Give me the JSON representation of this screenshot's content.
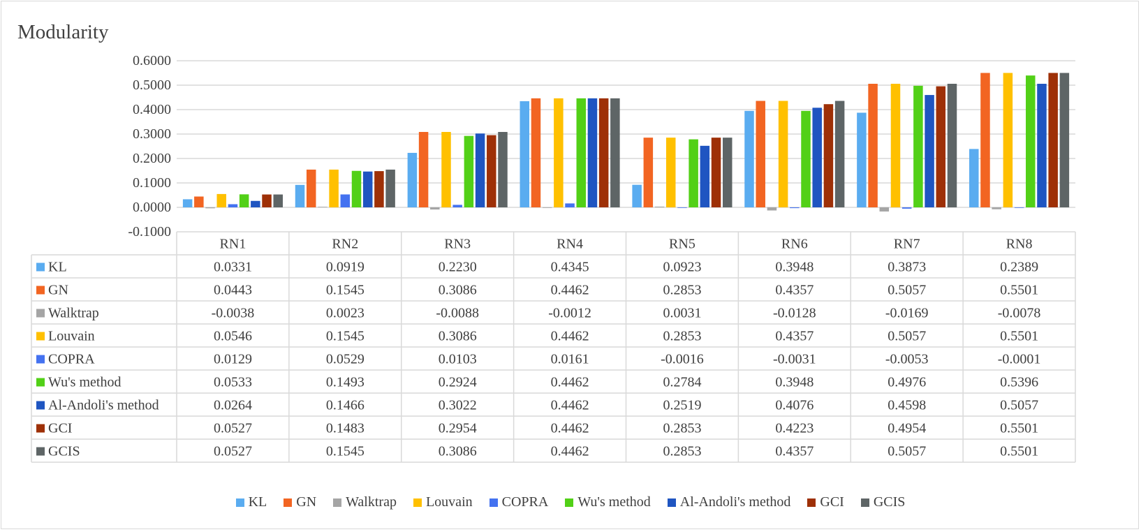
{
  "chart_data": {
    "type": "bar",
    "title": "Modularity",
    "xlabel": "",
    "ylabel": "",
    "ylim": [
      -0.1,
      0.6
    ],
    "yticks": [
      0.6,
      0.5,
      0.4,
      0.3,
      0.2,
      0.1,
      0.0,
      -0.1
    ],
    "ytick_labels": [
      "0.6000",
      "0.5000",
      "0.4000",
      "0.3000",
      "0.2000",
      "0.1000",
      "0.0000",
      "-0.1000"
    ],
    "categories": [
      "RN1",
      "RN2",
      "RN3",
      "RN4",
      "RN5",
      "RN6",
      "RN7",
      "RN8"
    ],
    "legend_position": "bottom",
    "grid": true,
    "series": [
      {
        "name": "KL",
        "color": "#5aacf0",
        "values": [
          0.0331,
          0.0919,
          0.223,
          0.4345,
          0.0923,
          0.3948,
          0.3873,
          0.2389
        ],
        "labels": [
          "0.0331",
          "0.0919",
          "0.2230",
          "0.4345",
          "0.0923",
          "0.3948",
          "0.3873",
          "0.2389"
        ]
      },
      {
        "name": "GN",
        "color": "#f26522",
        "values": [
          0.0443,
          0.1545,
          0.3086,
          0.4462,
          0.2853,
          0.4357,
          0.5057,
          0.5501
        ],
        "labels": [
          "0.0443",
          "0.1545",
          "0.3086",
          "0.4462",
          "0.2853",
          "0.4357",
          "0.5057",
          "0.5501"
        ]
      },
      {
        "name": "Walktrap",
        "color": "#a5a5a5",
        "values": [
          -0.0038,
          0.0023,
          -0.0088,
          -0.0012,
          0.0031,
          -0.0128,
          -0.0169,
          -0.0078
        ],
        "labels": [
          "-0.0038",
          "0.0023",
          "-0.0088",
          "-0.0012",
          "0.0031",
          "-0.0128",
          "-0.0169",
          "-0.0078"
        ]
      },
      {
        "name": "Louvain",
        "color": "#ffc000",
        "values": [
          0.0546,
          0.1545,
          0.3086,
          0.4462,
          0.2853,
          0.4357,
          0.5057,
          0.5501
        ],
        "labels": [
          "0.0546",
          "0.1545",
          "0.3086",
          "0.4462",
          "0.2853",
          "0.4357",
          "0.5057",
          "0.5501"
        ]
      },
      {
        "name": "COPRA",
        "color": "#4472f0",
        "values": [
          0.0129,
          0.0529,
          0.0103,
          0.0161,
          -0.0016,
          -0.0031,
          -0.0053,
          -0.0001
        ],
        "labels": [
          "0.0129",
          "0.0529",
          "0.0103",
          "0.0161",
          "-0.0016",
          "-0.0031",
          "-0.0053",
          "-0.0001"
        ]
      },
      {
        "name": "Wu's method",
        "color": "#52d017",
        "values": [
          0.0533,
          0.1493,
          0.2924,
          0.4462,
          0.2784,
          0.3948,
          0.4976,
          0.5396
        ],
        "labels": [
          "0.0533",
          "0.1493",
          "0.2924",
          "0.4462",
          "0.2784",
          "0.3948",
          "0.4976",
          "0.5396"
        ]
      },
      {
        "name": "Al-Andoli's method",
        "color": "#1f55c1",
        "values": [
          0.0264,
          0.1466,
          0.3022,
          0.4462,
          0.2519,
          0.4076,
          0.4598,
          0.5057
        ],
        "labels": [
          "0.0264",
          "0.1466",
          "0.3022",
          "0.4462",
          "0.2519",
          "0.4076",
          "0.4598",
          "0.5057"
        ]
      },
      {
        "name": "GCI",
        "color": "#9e3007",
        "values": [
          0.0527,
          0.1483,
          0.2954,
          0.4462,
          0.2853,
          0.4223,
          0.4954,
          0.5501
        ],
        "labels": [
          "0.0527",
          "0.1483",
          "0.2954",
          "0.4462",
          "0.2853",
          "0.4223",
          "0.4954",
          "0.5501"
        ]
      },
      {
        "name": "GCIS",
        "color": "#5e6566",
        "values": [
          0.0527,
          0.1545,
          0.3086,
          0.4462,
          0.2853,
          0.4357,
          0.5057,
          0.5501
        ],
        "labels": [
          "0.0527",
          "0.1545",
          "0.3086",
          "0.4462",
          "0.2853",
          "0.4357",
          "0.5057",
          "0.5501"
        ]
      }
    ]
  }
}
